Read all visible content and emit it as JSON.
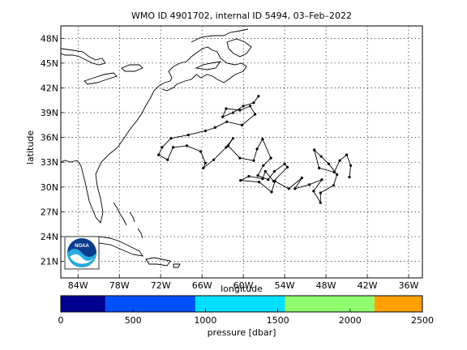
{
  "title": "WMO ID 4901702, internal ID 5494, 03–Feb–2022",
  "map": {
    "xlabel": "longitude",
    "ylabel": "latitude",
    "xticks": [
      {
        "lon": -84,
        "label": "84W"
      },
      {
        "lon": -78,
        "label": "78W"
      },
      {
        "lon": -72,
        "label": "72W"
      },
      {
        "lon": -66,
        "label": "66W"
      },
      {
        "lon": -60,
        "label": "60W"
      },
      {
        "lon": -54,
        "label": "54W"
      },
      {
        "lon": -48,
        "label": "48W"
      },
      {
        "lon": -42,
        "label": "42W"
      },
      {
        "lon": -36,
        "label": "36W"
      }
    ],
    "yticks": [
      {
        "lat": 21,
        "label": "21N"
      },
      {
        "lat": 24,
        "label": "24N"
      },
      {
        "lat": 27,
        "label": "27N"
      },
      {
        "lat": 30,
        "label": "30N"
      },
      {
        "lat": 33,
        "label": "33N"
      },
      {
        "lat": 36,
        "label": "36N"
      },
      {
        "lat": 39,
        "label": "39N"
      },
      {
        "lat": 42,
        "label": "42N"
      },
      {
        "lat": 45,
        "label": "45N"
      },
      {
        "lat": 48,
        "label": "48N"
      }
    ],
    "lon_range": [
      -86.5,
      -34
    ],
    "lat_range": [
      19,
      49.5
    ],
    "grid": true,
    "logo": "noaa-logo",
    "logo_text": "NOAA"
  },
  "float_track": [
    [
      -57.8,
      41.0
    ],
    [
      -58.5,
      40.2
    ],
    [
      -60.0,
      39.8
    ],
    [
      -61.5,
      39.0
    ],
    [
      -63.0,
      38.5
    ],
    [
      -62.5,
      39.5
    ],
    [
      -60.5,
      39.3
    ],
    [
      -59.0,
      39.8
    ],
    [
      -58.3,
      38.8
    ],
    [
      -60.2,
      37.5
    ],
    [
      -62.4,
      37.9
    ],
    [
      -64.1,
      37.2
    ],
    [
      -65.5,
      36.8
    ],
    [
      -68.0,
      36.3
    ],
    [
      -70.5,
      35.9
    ],
    [
      -71.8,
      34.8
    ],
    [
      -72.3,
      33.9
    ],
    [
      -71.0,
      33.3
    ],
    [
      -70.2,
      34.8
    ],
    [
      -68.2,
      35.0
    ],
    [
      -66.2,
      34.3
    ],
    [
      -65.5,
      32.9
    ],
    [
      -65.8,
      32.3
    ],
    [
      -64.3,
      33.3
    ],
    [
      -62.5,
      34.8
    ],
    [
      -61.5,
      35.9
    ],
    [
      -62.2,
      35.0
    ],
    [
      -60.5,
      33.5
    ],
    [
      -58.5,
      33.2
    ],
    [
      -58.0,
      34.6
    ],
    [
      -57.2,
      35.8
    ],
    [
      -56.0,
      33.5
    ],
    [
      -57.1,
      32.6
    ],
    [
      -57.9,
      31.4
    ],
    [
      -56.4,
      30.9
    ],
    [
      -55.5,
      31.9
    ],
    [
      -54.0,
      32.8
    ],
    [
      -53.6,
      32.4
    ],
    [
      -55.6,
      30.7
    ],
    [
      -56.8,
      31.9
    ],
    [
      -57.2,
      31.0
    ],
    [
      -59.2,
      31.3
    ],
    [
      -60.4,
      30.8
    ],
    [
      -57.7,
      30.6
    ],
    [
      -55.9,
      29.4
    ],
    [
      -55.4,
      30.7
    ],
    [
      -53.4,
      29.8
    ],
    [
      -51.5,
      31.1
    ],
    [
      -52.5,
      29.8
    ],
    [
      -50.4,
      30.3
    ],
    [
      -48.6,
      30.9
    ],
    [
      -49.8,
      29.5
    ],
    [
      -48.8,
      28.1
    ],
    [
      -48.8,
      29.3
    ],
    [
      -46.9,
      30.2
    ],
    [
      -46.4,
      31.5
    ],
    [
      -47.6,
      32.8
    ],
    [
      -48.7,
      33.7
    ],
    [
      -49.7,
      34.5
    ],
    [
      -49.0,
      32.3
    ],
    [
      -46.8,
      31.8
    ],
    [
      -46.0,
      33.2
    ],
    [
      -45.0,
      33.9
    ],
    [
      -44.4,
      32.6
    ],
    [
      -44.6,
      31.2
    ]
  ],
  "colorbar": {
    "label": "pressure [dbar]",
    "range": [
      0,
      2500
    ],
    "ticks": [
      "0",
      "500",
      "1000",
      "1500",
      "2000",
      "2500"
    ],
    "segments": [
      {
        "from": 0,
        "to": 310,
        "color": "#00008f"
      },
      {
        "from": 310,
        "to": 930,
        "color": "#0050ff"
      },
      {
        "from": 930,
        "to": 1550,
        "color": "#00dfff"
      },
      {
        "from": 1550,
        "to": 2170,
        "color": "#8fff70"
      },
      {
        "from": 2170,
        "to": 2500,
        "color": "#ffa000"
      }
    ]
  }
}
